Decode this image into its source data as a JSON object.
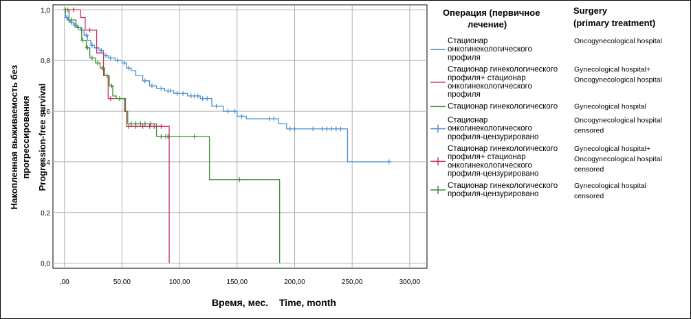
{
  "chart_data": {
    "type": "line",
    "xlabel_ru": "Время, мес.",
    "xlabel_en": "Time, month",
    "ylabel_ru_1": "Накопленная выживаемость без",
    "ylabel_ru_2": "прогрессирования",
    "ylabel_en": "Progression-free survival",
    "xlim": [
      -10,
      315
    ],
    "ylim": [
      -0.02,
      1.02
    ],
    "x_ticks": [
      {
        "value": 0,
        "label": ",00"
      },
      {
        "value": 50,
        "label": "50,00"
      },
      {
        "value": 100,
        "label": "100,00"
      },
      {
        "value": 150,
        "label": "150,00"
      },
      {
        "value": 200,
        "label": "200,00"
      },
      {
        "value": 250,
        "label": "250,00"
      },
      {
        "value": 300,
        "label": "300,00"
      }
    ],
    "y_ticks": [
      {
        "value": 0,
        "label": "0,0"
      },
      {
        "value": 0.2,
        "label": "0,2"
      },
      {
        "value": 0.4,
        "label": "0,4"
      },
      {
        "value": 0.6,
        "label": "0,6"
      },
      {
        "value": 0.8,
        "label": "0,8"
      },
      {
        "value": 1.0,
        "label": "1,0"
      }
    ],
    "grid": true,
    "series": [
      {
        "key": "onco",
        "color": "#4a8fd0",
        "steps": [
          [
            0,
            1.0
          ],
          [
            1,
            0.97
          ],
          [
            3,
            0.96
          ],
          [
            5,
            0.95
          ],
          [
            8,
            0.94
          ],
          [
            11,
            0.93
          ],
          [
            14,
            0.92
          ],
          [
            17,
            0.9
          ],
          [
            20,
            0.88
          ],
          [
            23,
            0.86
          ],
          [
            26,
            0.85
          ],
          [
            30,
            0.84
          ],
          [
            34,
            0.82
          ],
          [
            38,
            0.81
          ],
          [
            44,
            0.8
          ],
          [
            50,
            0.79
          ],
          [
            54,
            0.77
          ],
          [
            58,
            0.76
          ],
          [
            62,
            0.74
          ],
          [
            68,
            0.72
          ],
          [
            74,
            0.7
          ],
          [
            80,
            0.69
          ],
          [
            87,
            0.68
          ],
          [
            95,
            0.67
          ],
          [
            107,
            0.66
          ],
          [
            118,
            0.65
          ],
          [
            128,
            0.62
          ],
          [
            138,
            0.6
          ],
          [
            150,
            0.58
          ],
          [
            158,
            0.57
          ],
          [
            186,
            0.55
          ],
          [
            193,
            0.53
          ],
          [
            246,
            0.4
          ],
          [
            284,
            0.4
          ]
        ],
        "censors": [
          [
            2,
            0.97
          ],
          [
            4,
            0.96
          ],
          [
            6,
            0.95
          ],
          [
            9,
            0.94
          ],
          [
            12,
            0.93
          ],
          [
            15,
            0.92
          ],
          [
            19,
            0.9
          ],
          [
            24,
            0.86
          ],
          [
            28,
            0.85
          ],
          [
            32,
            0.84
          ],
          [
            36,
            0.82
          ],
          [
            40,
            0.81
          ],
          [
            46,
            0.8
          ],
          [
            52,
            0.79
          ],
          [
            56,
            0.77
          ],
          [
            70,
            0.72
          ],
          [
            76,
            0.7
          ],
          [
            84,
            0.69
          ],
          [
            90,
            0.68
          ],
          [
            92,
            0.68
          ],
          [
            98,
            0.67
          ],
          [
            103,
            0.67
          ],
          [
            110,
            0.66
          ],
          [
            113,
            0.66
          ],
          [
            116,
            0.66
          ],
          [
            120,
            0.65
          ],
          [
            124,
            0.65
          ],
          [
            132,
            0.62
          ],
          [
            142,
            0.6
          ],
          [
            148,
            0.6
          ],
          [
            154,
            0.58
          ],
          [
            178,
            0.57
          ],
          [
            182,
            0.57
          ],
          [
            196,
            0.53
          ],
          [
            200,
            0.53
          ],
          [
            216,
            0.53
          ],
          [
            224,
            0.53
          ],
          [
            228,
            0.53
          ],
          [
            232,
            0.53
          ],
          [
            236,
            0.53
          ],
          [
            240,
            0.53
          ],
          [
            282,
            0.4
          ]
        ]
      },
      {
        "key": "gyn_onco",
        "color": "#c8325a",
        "steps": [
          [
            0,
            1.0
          ],
          [
            14,
            0.97
          ],
          [
            18,
            0.92
          ],
          [
            28,
            0.83
          ],
          [
            34,
            0.74
          ],
          [
            38,
            0.65
          ],
          [
            52,
            0.6
          ],
          [
            54,
            0.54
          ],
          [
            91,
            0.54
          ],
          [
            91,
            0.0
          ]
        ],
        "censors": [
          [
            3,
            1.0
          ],
          [
            8,
            1.0
          ],
          [
            22,
            0.92
          ],
          [
            40,
            0.65
          ],
          [
            56,
            0.54
          ],
          [
            62,
            0.54
          ],
          [
            68,
            0.54
          ],
          [
            74,
            0.54
          ],
          [
            78,
            0.54
          ],
          [
            84,
            0.54
          ]
        ]
      },
      {
        "key": "gyn",
        "color": "#3a8a30",
        "steps": [
          [
            0,
            1.0
          ],
          [
            4,
            0.96
          ],
          [
            10,
            0.93
          ],
          [
            15,
            0.88
          ],
          [
            19,
            0.85
          ],
          [
            22,
            0.81
          ],
          [
            27,
            0.79
          ],
          [
            31,
            0.77
          ],
          [
            35,
            0.74
          ],
          [
            39,
            0.7
          ],
          [
            42,
            0.66
          ],
          [
            45,
            0.65
          ],
          [
            53,
            0.6
          ],
          [
            55,
            0.55
          ],
          [
            79,
            0.55
          ],
          [
            80,
            0.5
          ],
          [
            125,
            0.5
          ],
          [
            126,
            0.33
          ],
          [
            187,
            0.33
          ],
          [
            187,
            0.0
          ]
        ],
        "censors": [
          [
            1,
            1.0
          ],
          [
            6,
            0.96
          ],
          [
            12,
            0.93
          ],
          [
            16,
            0.88
          ],
          [
            20,
            0.85
          ],
          [
            24,
            0.81
          ],
          [
            29,
            0.79
          ],
          [
            33,
            0.77
          ],
          [
            37,
            0.74
          ],
          [
            41,
            0.7
          ],
          [
            48,
            0.65
          ],
          [
            58,
            0.55
          ],
          [
            62,
            0.55
          ],
          [
            66,
            0.55
          ],
          [
            70,
            0.55
          ],
          [
            75,
            0.55
          ],
          [
            84,
            0.5
          ],
          [
            88,
            0.5
          ],
          [
            90,
            0.5
          ],
          [
            113,
            0.5
          ],
          [
            152,
            0.33
          ]
        ]
      }
    ],
    "legend": {
      "placement": "right",
      "title_ru_1": "Операция (первичное",
      "title_ru_2": "лечение)",
      "title_en_1": "Surgery",
      "title_en_2": "(primary treatment)",
      "entries": [
        {
          "series": "onco",
          "marker": "line",
          "ru": [
            "Стационар",
            "онкогинекологического",
            "профиля"
          ],
          "en": [
            "Oncogynecological hospital"
          ]
        },
        {
          "series": "gyn_onco",
          "marker": "line",
          "ru": [
            "Стационар гинекологического",
            "профиля+ стационар",
            "онкогинекологического",
            "профиля"
          ],
          "en": [
            "Gynecological hospital+",
            "Oncogynecological hospital"
          ]
        },
        {
          "series": "gyn",
          "marker": "line",
          "ru": [
            "Стационар гинекологического"
          ],
          "en": [
            "Gynecological hospital"
          ]
        },
        {
          "series": "onco",
          "marker": "plus",
          "ru": [
            "Стационар",
            "онкогинекологического",
            "профиля-цензурировано"
          ],
          "en": [
            "Oncogynecological hospital",
            "censored"
          ]
        },
        {
          "series": "gyn_onco",
          "marker": "plus",
          "ru": [
            "Стационар гинекологического",
            "профиля+ стационар",
            "онкогинекологического",
            "профиля-цензурировано"
          ],
          "en": [
            "Gynecological hospital+",
            "Oncogynecological hospital",
            "censored"
          ]
        },
        {
          "series": "gyn",
          "marker": "plus",
          "ru": [
            "Стационар гинекологического",
            "профиля-цензурировано"
          ],
          "en": [
            "Gynecological hospital",
            "censored"
          ]
        }
      ]
    }
  }
}
